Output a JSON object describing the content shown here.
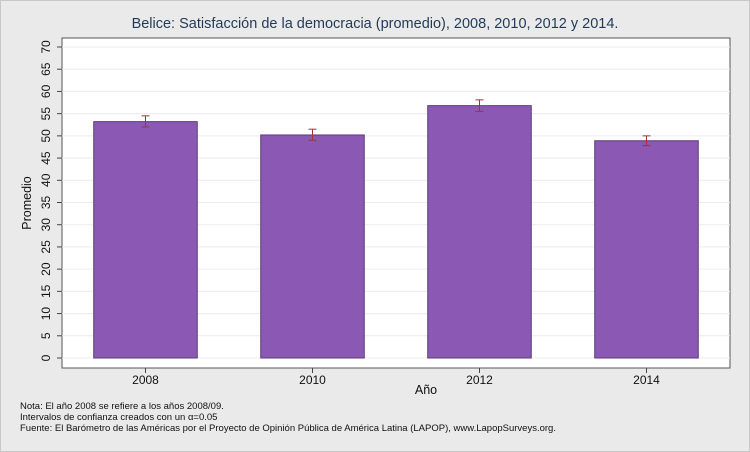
{
  "title": "Belice: Satisfacción de la democracia (promedio), 2008, 2010, 2012 y 2014.",
  "chart_data": {
    "type": "bar",
    "categories": [
      "2008",
      "2010",
      "2012",
      "2014"
    ],
    "values": [
      53.2,
      50.2,
      56.8,
      48.9
    ],
    "error_low": [
      52.0,
      49.0,
      55.5,
      47.8
    ],
    "error_high": [
      54.5,
      51.5,
      58.1,
      50.0
    ],
    "xlabel": "Año",
    "ylabel": "Promedio",
    "ylim": [
      0,
      70
    ],
    "yticks": [
      0,
      5,
      10,
      15,
      20,
      25,
      30,
      35,
      40,
      45,
      50,
      55,
      60,
      65,
      70
    ],
    "grid": true,
    "bar_color": "#8b59b3",
    "error_bar_color": "#a03040"
  },
  "notes": [
    "Nota: El año 2008 se refiere a los años 2008/09.",
    "Intervalos de confianza creados con un α=0.05",
    "Fuente: El Barómetro de las Américas por el Proyecto de Opinión Pública de América Latina (LAPOP), www.LapopSurveys.org."
  ]
}
